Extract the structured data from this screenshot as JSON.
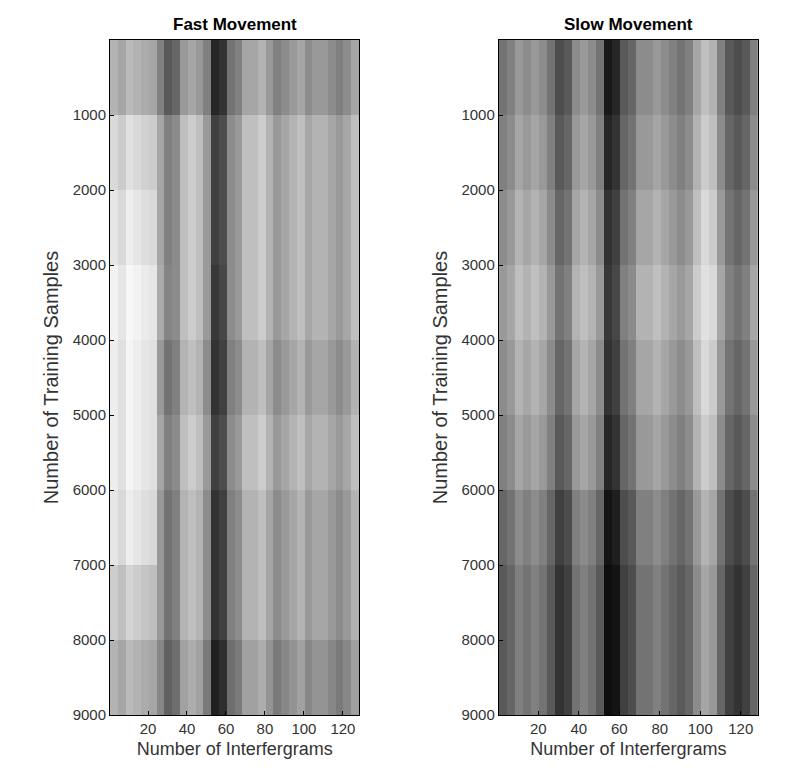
{
  "chart_data": [
    {
      "type": "heatmap",
      "title": "Fast Movement",
      "x_label": "Number of Interfergrams",
      "y_label": "Number of Training Samples",
      "x": [
        2.5,
        6.5,
        10.5,
        14.5,
        18.5,
        22.5,
        26.5,
        30.5,
        34.5,
        38.5,
        42.5,
        46.5,
        50.5,
        54.5,
        58.5,
        62.5,
        66.5,
        70.5,
        74.5,
        78.5,
        82.5,
        86.5,
        90.5,
        94.5,
        98.5,
        102.5,
        106.5,
        110.5,
        114.5,
        118.5,
        122.5,
        126.5
      ],
      "y": [
        500,
        1500,
        2500,
        3500,
        4500,
        5500,
        6500,
        7500,
        8500
      ],
      "cells": [
        [
          30,
          35,
          27,
          30,
          33,
          35,
          50,
          65,
          60,
          40,
          35,
          40,
          50,
          85,
          80,
          55,
          50,
          35,
          35,
          30,
          40,
          50,
          45,
          40,
          35,
          45,
          40,
          40,
          45,
          50,
          45,
          35
        ],
        [
          15,
          20,
          12,
          15,
          18,
          20,
          35,
          50,
          45,
          25,
          20,
          25,
          40,
          75,
          70,
          45,
          40,
          25,
          25,
          20,
          30,
          40,
          35,
          30,
          25,
          35,
          30,
          30,
          35,
          40,
          35,
          25
        ],
        [
          10,
          15,
          7,
          10,
          13,
          15,
          35,
          50,
          45,
          25,
          20,
          25,
          40,
          75,
          70,
          45,
          40,
          25,
          25,
          20,
          30,
          40,
          35,
          30,
          25,
          35,
          30,
          30,
          35,
          40,
          35,
          25
        ],
        [
          5,
          10,
          3,
          5,
          8,
          10,
          33,
          48,
          45,
          25,
          20,
          25,
          40,
          78,
          72,
          45,
          40,
          25,
          25,
          20,
          30,
          40,
          35,
          30,
          25,
          35,
          30,
          30,
          35,
          40,
          35,
          25
        ],
        [
          7,
          12,
          4,
          7,
          10,
          12,
          40,
          55,
          50,
          30,
          25,
          30,
          45,
          80,
          75,
          50,
          45,
          30,
          30,
          25,
          35,
          45,
          40,
          35,
          30,
          40,
          35,
          35,
          40,
          45,
          40,
          30
        ],
        [
          7,
          12,
          4,
          7,
          10,
          12,
          35,
          50,
          45,
          25,
          20,
          25,
          40,
          75,
          70,
          45,
          40,
          25,
          25,
          20,
          30,
          40,
          35,
          30,
          25,
          35,
          30,
          30,
          35,
          40,
          35,
          25
        ],
        [
          10,
          15,
          7,
          10,
          13,
          15,
          40,
          55,
          50,
          30,
          25,
          30,
          45,
          80,
          75,
          50,
          45,
          30,
          30,
          25,
          35,
          45,
          40,
          35,
          30,
          40,
          35,
          35,
          40,
          45,
          40,
          30
        ],
        [
          20,
          25,
          17,
          20,
          23,
          25,
          40,
          55,
          50,
          30,
          25,
          30,
          45,
          80,
          75,
          50,
          45,
          30,
          30,
          25,
          35,
          45,
          40,
          35,
          30,
          40,
          35,
          35,
          40,
          45,
          40,
          30
        ],
        [
          30,
          35,
          27,
          30,
          33,
          35,
          47,
          62,
          57,
          37,
          32,
          37,
          52,
          87,
          82,
          57,
          52,
          37,
          37,
          32,
          42,
          52,
          47,
          42,
          37,
          47,
          42,
          42,
          47,
          52,
          47,
          37
        ]
      ],
      "zlim": [
        0,
        100
      ],
      "colors": [
        "#ffffff",
        "#000000"
      ],
      "xlim": [
        0.5,
        128.5
      ],
      "xticks": [
        20,
        40,
        60,
        80,
        100,
        120
      ],
      "ylim": [
        9000,
        0
      ],
      "yticks": [
        1000,
        2000,
        3000,
        4000,
        5000,
        6000,
        7000,
        8000,
        9000
      ]
    },
    {
      "type": "heatmap",
      "title": "Slow Movement",
      "x_label": "Number of Interfergrams",
      "y_label": "Number of Training Samples",
      "x": [
        2.5,
        6.5,
        10.5,
        14.5,
        18.5,
        22.5,
        26.5,
        30.5,
        34.5,
        38.5,
        42.5,
        46.5,
        50.5,
        54.5,
        58.5,
        62.5,
        66.5,
        70.5,
        74.5,
        78.5,
        82.5,
        86.5,
        90.5,
        94.5,
        98.5,
        102.5,
        106.5,
        110.5,
        114.5,
        118.5,
        122.5,
        126.5
      ],
      "y": [
        500,
        1500,
        2500,
        3500,
        4500,
        5500,
        6500,
        7500,
        8500
      ],
      "cells": [
        [
          55,
          50,
          40,
          45,
          40,
          45,
          55,
          70,
          65,
          45,
          40,
          45,
          55,
          90,
          85,
          65,
          60,
          45,
          45,
          40,
          45,
          50,
          55,
          50,
          35,
          25,
          30,
          50,
          65,
          70,
          65,
          50
        ],
        [
          50,
          45,
          35,
          40,
          35,
          40,
          50,
          65,
          60,
          40,
          35,
          40,
          50,
          85,
          80,
          60,
          55,
          40,
          40,
          35,
          40,
          45,
          50,
          45,
          30,
          20,
          25,
          45,
          60,
          65,
          60,
          45
        ],
        [
          45,
          40,
          30,
          35,
          30,
          35,
          45,
          60,
          55,
          35,
          30,
          35,
          45,
          80,
          75,
          55,
          50,
          35,
          35,
          30,
          35,
          40,
          45,
          40,
          25,
          15,
          20,
          40,
          55,
          60,
          55,
          40
        ],
        [
          40,
          35,
          25,
          30,
          25,
          30,
          40,
          55,
          50,
          30,
          25,
          30,
          40,
          78,
          72,
          50,
          45,
          30,
          30,
          25,
          30,
          35,
          40,
          35,
          20,
          12,
          15,
          35,
          50,
          55,
          50,
          35
        ],
        [
          45,
          40,
          30,
          35,
          30,
          35,
          45,
          60,
          55,
          35,
          30,
          35,
          45,
          80,
          75,
          55,
          50,
          35,
          35,
          30,
          35,
          40,
          45,
          40,
          25,
          15,
          20,
          40,
          55,
          60,
          55,
          40
        ],
        [
          50,
          45,
          35,
          40,
          35,
          40,
          50,
          65,
          60,
          40,
          35,
          40,
          50,
          85,
          80,
          60,
          55,
          40,
          40,
          35,
          40,
          45,
          50,
          45,
          30,
          20,
          25,
          45,
          60,
          65,
          60,
          45
        ],
        [
          60,
          55,
          45,
          50,
          45,
          50,
          60,
          75,
          70,
          50,
          45,
          50,
          60,
          92,
          88,
          70,
          65,
          50,
          50,
          45,
          50,
          55,
          60,
          55,
          40,
          30,
          35,
          55,
          70,
          75,
          70,
          55
        ],
        [
          65,
          60,
          50,
          55,
          50,
          55,
          65,
          80,
          75,
          55,
          50,
          55,
          65,
          95,
          92,
          75,
          70,
          55,
          55,
          50,
          55,
          60,
          65,
          60,
          45,
          35,
          40,
          60,
          75,
          80,
          75,
          60
        ],
        [
          65,
          60,
          50,
          55,
          50,
          55,
          65,
          80,
          75,
          55,
          50,
          55,
          65,
          95,
          92,
          75,
          70,
          55,
          55,
          50,
          55,
          60,
          65,
          60,
          45,
          35,
          40,
          60,
          75,
          80,
          75,
          60
        ]
      ],
      "zlim": [
        0,
        100
      ],
      "colors": [
        "#ffffff",
        "#000000"
      ],
      "xlim": [
        0.5,
        128.5
      ],
      "xticks": [
        20,
        40,
        60,
        80,
        100,
        120
      ],
      "ylim": [
        9000,
        0
      ],
      "yticks": [
        1000,
        2000,
        3000,
        4000,
        5000,
        6000,
        7000,
        8000,
        9000
      ]
    }
  ]
}
